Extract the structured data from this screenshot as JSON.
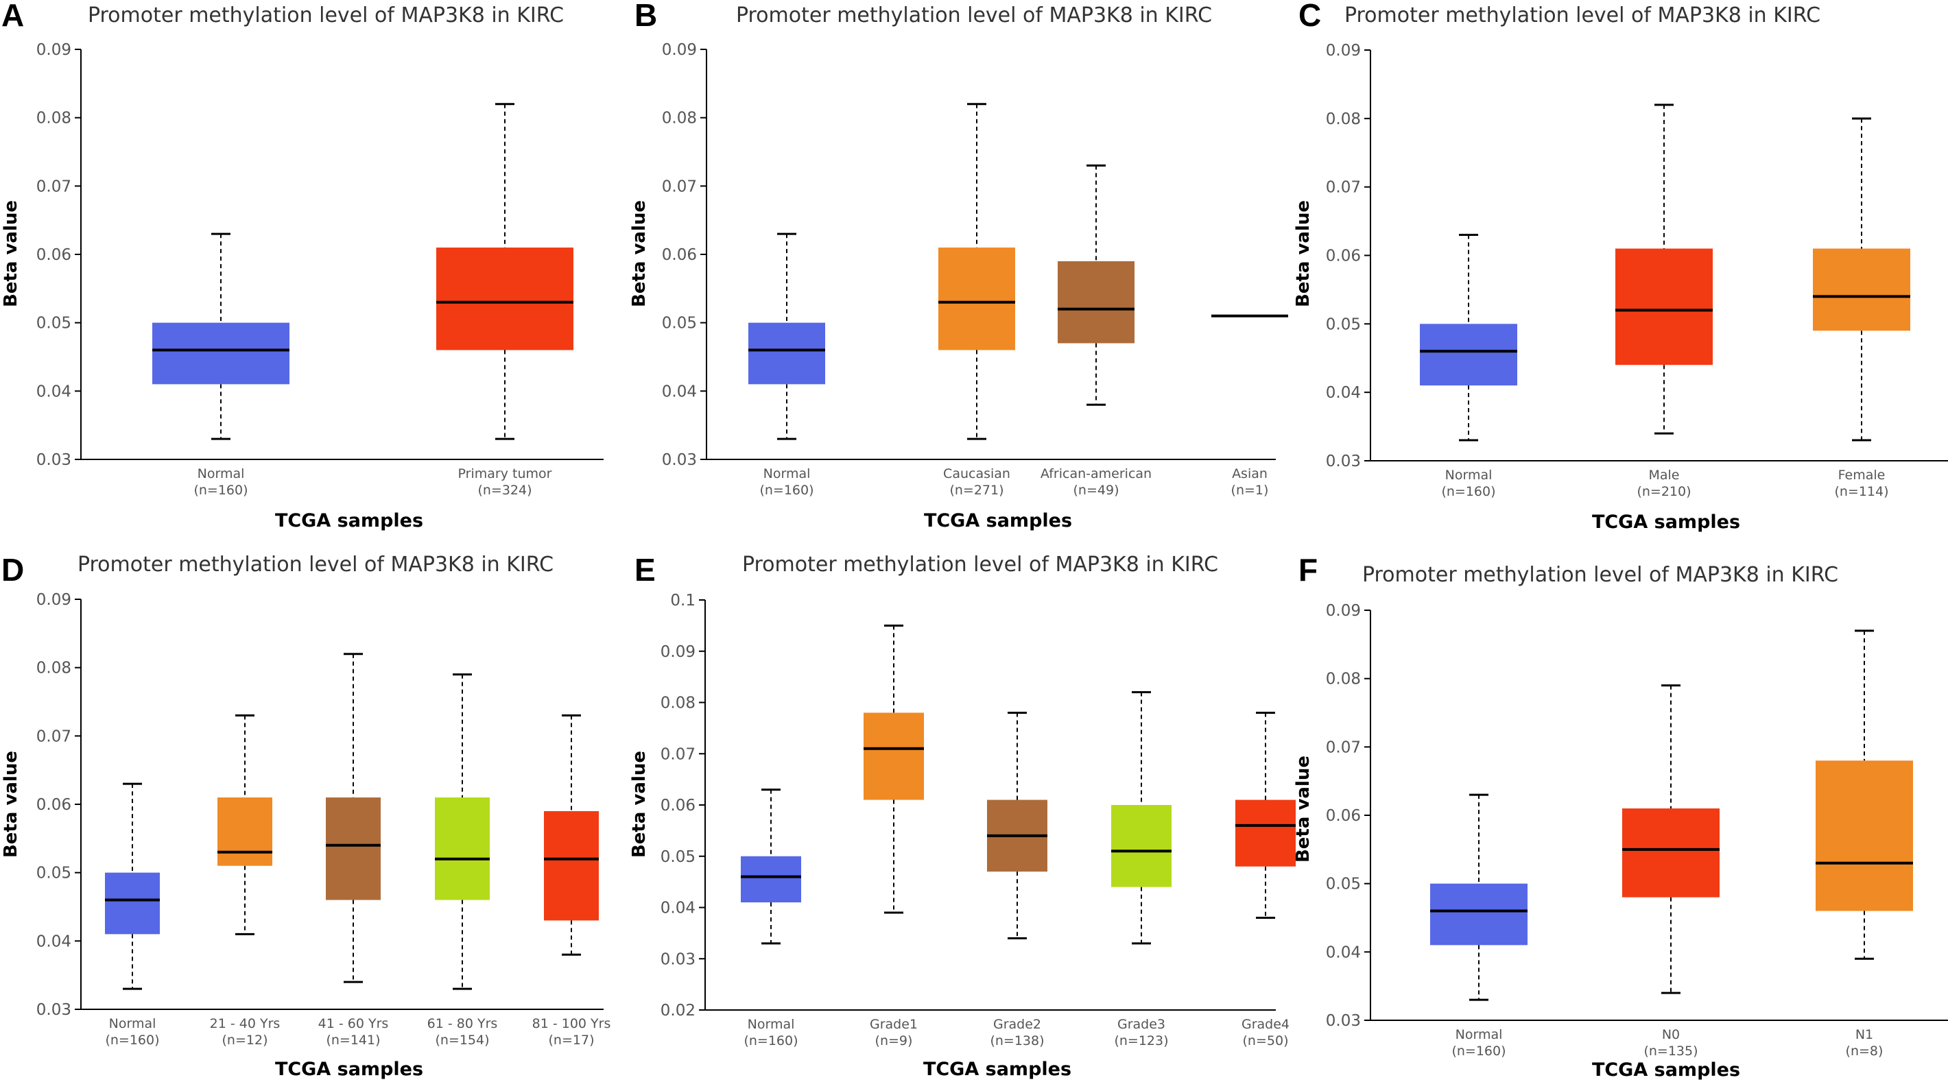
{
  "chart_data": [
    {
      "panel": "A",
      "type": "boxplot",
      "title": "Promoter methylation level of MAP3K8 in KIRC",
      "xlabel": "TCGA samples",
      "ylabel": "Beta value",
      "ylim": [
        0.03,
        0.09
      ],
      "yticks": [
        "0.03",
        "0.04",
        "0.05",
        "0.06",
        "0.07",
        "0.08",
        "0.09"
      ],
      "categories": [
        {
          "name": "Normal",
          "n": "(n=160)",
          "color": "#5668E6",
          "min": 0.033,
          "q1": 0.041,
          "median": 0.046,
          "q3": 0.05,
          "max": 0.063
        },
        {
          "name": "Primary tumor",
          "n": "(n=324)",
          "color": "#F23B12",
          "min": 0.033,
          "q1": 0.046,
          "median": 0.053,
          "q3": 0.061,
          "max": 0.082
        }
      ]
    },
    {
      "panel": "B",
      "type": "boxplot",
      "title": "Promoter methylation level of MAP3K8 in KIRC",
      "xlabel": "TCGA samples",
      "ylabel": "Beta value",
      "ylim": [
        0.03,
        0.09
      ],
      "yticks": [
        "0.03",
        "0.04",
        "0.05",
        "0.06",
        "0.07",
        "0.08",
        "0.09"
      ],
      "categories": [
        {
          "name": "Normal",
          "n": "(n=160)",
          "color": "#5668E6",
          "min": 0.033,
          "q1": 0.041,
          "median": 0.046,
          "q3": 0.05,
          "max": 0.063
        },
        {
          "name": "Caucasian",
          "n": "(n=271)",
          "color": "#F08A24",
          "min": 0.033,
          "q1": 0.046,
          "median": 0.053,
          "q3": 0.061,
          "max": 0.082
        },
        {
          "name": "African-american",
          "n": "(n=49)",
          "color": "#AD6B39",
          "min": 0.038,
          "q1": 0.047,
          "median": 0.052,
          "q3": 0.059,
          "max": 0.073
        },
        {
          "name": "Asian",
          "n": "(n=1)",
          "color": "#000000",
          "min": 0.051,
          "q1": 0.051,
          "median": 0.051,
          "q3": 0.051,
          "max": 0.051
        }
      ]
    },
    {
      "panel": "C",
      "type": "boxplot",
      "title": "Promoter methylation level of MAP3K8 in KIRC",
      "xlabel": "TCGA samples",
      "ylabel": "Beta value",
      "ylim": [
        0.03,
        0.09
      ],
      "yticks": [
        "0.03",
        "0.04",
        "0.05",
        "0.06",
        "0.07",
        "0.08",
        "0.09"
      ],
      "categories": [
        {
          "name": "Normal",
          "n": "(n=160)",
          "color": "#5668E6",
          "min": 0.033,
          "q1": 0.041,
          "median": 0.046,
          "q3": 0.05,
          "max": 0.063
        },
        {
          "name": "Male",
          "n": "(n=210)",
          "color": "#F23B12",
          "min": 0.034,
          "q1": 0.044,
          "median": 0.052,
          "q3": 0.061,
          "max": 0.082
        },
        {
          "name": "Female",
          "n": "(n=114)",
          "color": "#F08A24",
          "min": 0.033,
          "q1": 0.049,
          "median": 0.054,
          "q3": 0.061,
          "max": 0.08
        }
      ]
    },
    {
      "panel": "D",
      "type": "boxplot",
      "title": "Promoter methylation level of MAP3K8 in KIRC",
      "xlabel": "TCGA samples",
      "ylabel": "Beta value",
      "ylim": [
        0.03,
        0.09
      ],
      "yticks": [
        "0.03",
        "0.04",
        "0.05",
        "0.06",
        "0.07",
        "0.08",
        "0.09"
      ],
      "categories": [
        {
          "name": "Normal",
          "n": "(n=160)",
          "color": "#5668E6",
          "min": 0.033,
          "q1": 0.041,
          "median": 0.046,
          "q3": 0.05,
          "max": 0.063
        },
        {
          "name": "21 - 40 Yrs",
          "n": "(n=12)",
          "color": "#F08A24",
          "min": 0.041,
          "q1": 0.051,
          "median": 0.053,
          "q3": 0.061,
          "max": 0.073
        },
        {
          "name": "41 - 60 Yrs",
          "n": "(n=141)",
          "color": "#AD6B39",
          "min": 0.034,
          "q1": 0.046,
          "median": 0.054,
          "q3": 0.061,
          "max": 0.082
        },
        {
          "name": "61 - 80 Yrs",
          "n": "(n=154)",
          "color": "#B3DB1A",
          "min": 0.033,
          "q1": 0.046,
          "median": 0.052,
          "q3": 0.061,
          "max": 0.079
        },
        {
          "name": "81 - 100 Yrs",
          "n": "(n=17)",
          "color": "#F23B12",
          "min": 0.038,
          "q1": 0.043,
          "median": 0.052,
          "q3": 0.059,
          "max": 0.073
        }
      ]
    },
    {
      "panel": "E",
      "type": "boxplot",
      "title": "Promoter methylation level of MAP3K8 in KIRC",
      "xlabel": "TCGA samples",
      "ylabel": "Beta value",
      "ylim": [
        0.02,
        0.1
      ],
      "yticks": [
        "0.02",
        "0.03",
        "0.04",
        "0.05",
        "0.06",
        "0.07",
        "0.08",
        "0.09",
        "0.1"
      ],
      "categories": [
        {
          "name": "Normal",
          "n": "(n=160)",
          "color": "#5668E6",
          "min": 0.033,
          "q1": 0.041,
          "median": 0.046,
          "q3": 0.05,
          "max": 0.063
        },
        {
          "name": "Grade1",
          "n": "(n=9)",
          "color": "#F08A24",
          "min": 0.039,
          "q1": 0.061,
          "median": 0.071,
          "q3": 0.078,
          "max": 0.095
        },
        {
          "name": "Grade2",
          "n": "(n=138)",
          "color": "#AD6B39",
          "min": 0.034,
          "q1": 0.047,
          "median": 0.054,
          "q3": 0.061,
          "max": 0.078
        },
        {
          "name": "Grade3",
          "n": "(n=123)",
          "color": "#B3DB1A",
          "min": 0.033,
          "q1": 0.044,
          "median": 0.051,
          "q3": 0.06,
          "max": 0.082
        },
        {
          "name": "Grade4",
          "n": "(n=50)",
          "color": "#F23B12",
          "min": 0.038,
          "q1": 0.048,
          "median": 0.056,
          "q3": 0.061,
          "max": 0.078
        }
      ]
    },
    {
      "panel": "F",
      "type": "boxplot",
      "title": "Promoter methylation level of MAP3K8 in KIRC",
      "xlabel": "TCGA samples",
      "ylabel": "Beta value",
      "ylim": [
        0.03,
        0.09
      ],
      "yticks": [
        "0.03",
        "0.04",
        "0.05",
        "0.06",
        "0.07",
        "0.08",
        "0.09"
      ],
      "categories": [
        {
          "name": "Normal",
          "n": "(n=160)",
          "color": "#5668E6",
          "min": 0.033,
          "q1": 0.041,
          "median": 0.046,
          "q3": 0.05,
          "max": 0.063
        },
        {
          "name": "N0",
          "n": "(n=135)",
          "color": "#F23B12",
          "min": 0.034,
          "q1": 0.048,
          "median": 0.055,
          "q3": 0.061,
          "max": 0.079
        },
        {
          "name": "N1",
          "n": "(n=8)",
          "color": "#F08A24",
          "min": 0.039,
          "q1": 0.046,
          "median": 0.053,
          "q3": 0.068,
          "max": 0.087
        }
      ]
    }
  ]
}
